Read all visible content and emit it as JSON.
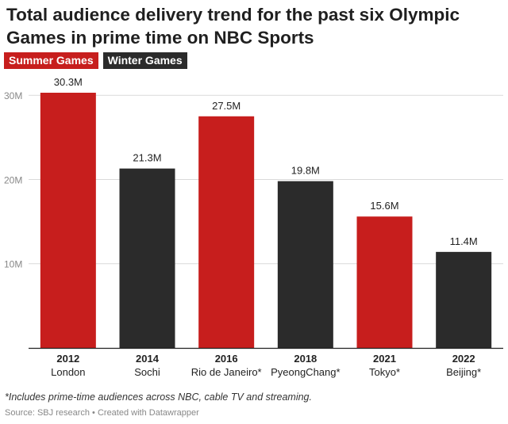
{
  "title": "Total audience delivery trend for the past six Olympic Games in prime time on NBC Sports",
  "legend": {
    "summer": "Summer Games",
    "winter": "Winter Games"
  },
  "colors": {
    "summer": "#c71e1d",
    "winter": "#2b2b2b",
    "grid": "#d9d9d9",
    "axis": "#222222",
    "tick_label": "#888888"
  },
  "footnote": "*Includes prime-time audiences across NBC, cable TV and streaming.",
  "source": "Source: SBJ research • Created with Datawrapper",
  "chart_data": {
    "type": "bar",
    "categories": [
      "2012",
      "2014",
      "2016",
      "2018",
      "2021",
      "2022"
    ],
    "sublabels": [
      "London",
      "Sochi",
      "Rio de Janeiro*",
      "PyeongChang*",
      "Tokyo*",
      "Beijing*"
    ],
    "season": [
      "summer",
      "winter",
      "summer",
      "winter",
      "summer",
      "winter"
    ],
    "values": [
      30.3,
      21.3,
      27.5,
      19.8,
      15.6,
      11.4
    ],
    "value_labels": [
      "30.3M",
      "21.3M",
      "27.5M",
      "19.8M",
      "15.6M",
      "11.4M"
    ],
    "yticks": [
      10,
      20,
      30
    ],
    "ytick_labels": [
      "10M",
      "20M",
      "30M"
    ],
    "ylim": [
      0,
      30.3
    ],
    "grid": true,
    "legend_position": "top-left"
  }
}
